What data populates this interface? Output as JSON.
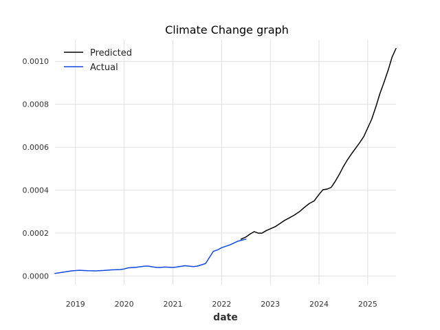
{
  "chart_data": {
    "type": "line",
    "title": "Climate Change graph",
    "xlabel": "date",
    "ylabel": "",
    "xlim": [
      2018.58,
      2025.58
    ],
    "ylim": [
      -4e-05,
      0.0011
    ],
    "x_ticks": [
      2019,
      2020,
      2021,
      2022,
      2023,
      2024,
      2025
    ],
    "x_tick_labels": [
      "2019",
      "2020",
      "2021",
      "2022",
      "2023",
      "2024",
      "2025"
    ],
    "y_ticks": [
      0.0,
      0.0002,
      0.0004,
      0.0006,
      0.0008,
      0.001
    ],
    "y_tick_labels": [
      "0.0000",
      "0.0002",
      "0.0004",
      "0.0006",
      "0.0008",
      "0.0010"
    ],
    "grid": true,
    "legend_position": "top-left",
    "series": [
      {
        "name": "Predicted",
        "color": "#000000",
        "x": [
          2022.4,
          2022.5,
          2022.58,
          2022.67,
          2022.75,
          2022.83,
          2022.92,
          2023.0,
          2023.1,
          2023.2,
          2023.3,
          2023.4,
          2023.5,
          2023.6,
          2023.7,
          2023.8,
          2023.9,
          2024.0,
          2024.08,
          2024.17,
          2024.25,
          2024.33,
          2024.42,
          2024.5,
          2024.58,
          2024.67,
          2024.75,
          2024.83,
          2024.92,
          2025.0,
          2025.08,
          2025.17,
          2025.25,
          2025.33,
          2025.42,
          2025.5,
          2025.58
        ],
        "y": [
          0.000172,
          0.000182,
          0.000195,
          0.000207,
          0.0002,
          0.0002,
          0.000212,
          0.00022,
          0.00023,
          0.000245,
          0.00026,
          0.000272,
          0.000285,
          0.0003,
          0.00032,
          0.000338,
          0.00035,
          0.00038,
          0.000402,
          0.000405,
          0.000413,
          0.00044,
          0.000475,
          0.00051,
          0.00054,
          0.00057,
          0.000595,
          0.00062,
          0.00065,
          0.00069,
          0.00073,
          0.00079,
          0.00085,
          0.0009,
          0.00096,
          0.00102,
          0.00106
        ]
      },
      {
        "name": "Actual",
        "color": "#0d47e0",
        "x": [
          2018.58,
          2018.75,
          2018.92,
          2019.08,
          2019.25,
          2019.42,
          2019.58,
          2019.75,
          2019.92,
          2020.0,
          2020.08,
          2020.25,
          2020.42,
          2020.5,
          2020.58,
          2020.67,
          2020.75,
          2020.83,
          2020.92,
          2021.0,
          2021.08,
          2021.25,
          2021.42,
          2021.5,
          2021.67,
          2021.83,
          2021.92,
          2022.0,
          2022.17,
          2022.33,
          2022.5
        ],
        "y": [
          1.2e-05,
          1.8e-05,
          2.4e-05,
          2.7e-05,
          2.5e-05,
          2.4e-05,
          2.6e-05,
          2.9e-05,
          3e-05,
          3.3e-05,
          3.8e-05,
          4.1e-05,
          4.6e-05,
          4.6e-05,
          4.3e-05,
          4e-05,
          4e-05,
          4.2e-05,
          4.1e-05,
          4e-05,
          4.2e-05,
          4.8e-05,
          4.4e-05,
          4.6e-05,
          5.8e-05,
          0.000115,
          0.000122,
          0.000132,
          0.000145,
          0.000162,
          0.000172
        ]
      }
    ]
  }
}
